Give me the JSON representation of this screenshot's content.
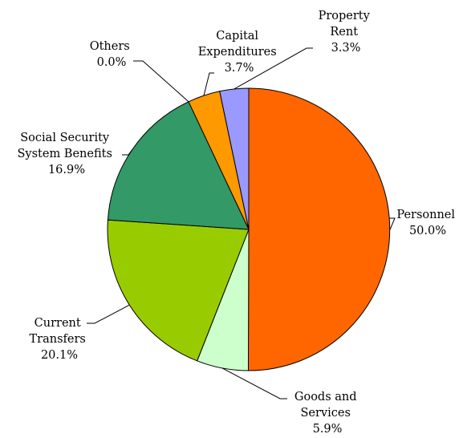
{
  "chart_data": {
    "type": "pie",
    "title": "",
    "start_angle_deg": 0,
    "direction": "clockwise",
    "slices": [
      {
        "label_lines": [
          "Personnel"
        ],
        "pct_label": "50.0%",
        "value": 50.0,
        "color": "#ff6600"
      },
      {
        "label_lines": [
          "Goods and",
          "Services"
        ],
        "pct_label": "5.9%",
        "value": 5.9,
        "color": "#ccffcc"
      },
      {
        "label_lines": [
          "Current",
          "Transfers"
        ],
        "pct_label": "20.1%",
        "value": 20.1,
        "color": "#99cc00"
      },
      {
        "label_lines": [
          "Social Security",
          "System Benefits"
        ],
        "pct_label": "16.9%",
        "value": 16.9,
        "color": "#339966"
      },
      {
        "label_lines": [
          "Others"
        ],
        "pct_label": "0.0%",
        "value": 0.0,
        "color": "#ffffff"
      },
      {
        "label_lines": [
          "Capital",
          "Expenditures"
        ],
        "pct_label": "3.7%",
        "value": 3.7,
        "color": "#ff9900"
      },
      {
        "label_lines": [
          "Property",
          "Rent"
        ],
        "pct_label": "3.3%",
        "value": 3.3,
        "color": "#9999ff"
      }
    ]
  }
}
